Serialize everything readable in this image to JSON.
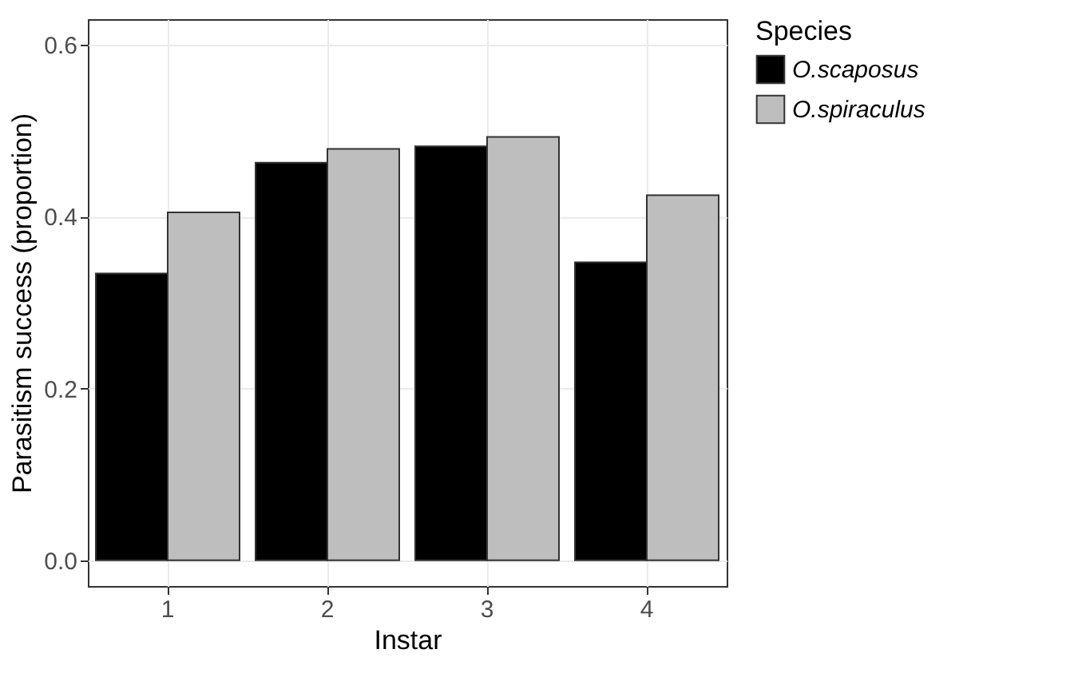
{
  "chart_data": {
    "type": "bar",
    "xlabel": "Instar",
    "ylabel": "Parasitism success (proportion)",
    "legend_title": "Species",
    "categories": [
      "1",
      "2",
      "3",
      "4"
    ],
    "series": [
      {
        "name": "O.scaposus",
        "color": "#000000",
        "values": [
          0.334,
          0.463,
          0.482,
          0.347
        ]
      },
      {
        "name": "O.spiraculus",
        "color": "#bebebe",
        "values": [
          0.405,
          0.479,
          0.493,
          0.425
        ]
      }
    ],
    "ylim": [
      -0.03,
      0.63
    ],
    "yticks": [
      {
        "value": 0,
        "label": "0.0"
      },
      {
        "value": 0.2,
        "label": "0.2"
      },
      {
        "value": 0.4,
        "label": "0.4"
      },
      {
        "value": 0.6,
        "label": "0.6"
      }
    ],
    "grid": true,
    "legend": "right"
  }
}
